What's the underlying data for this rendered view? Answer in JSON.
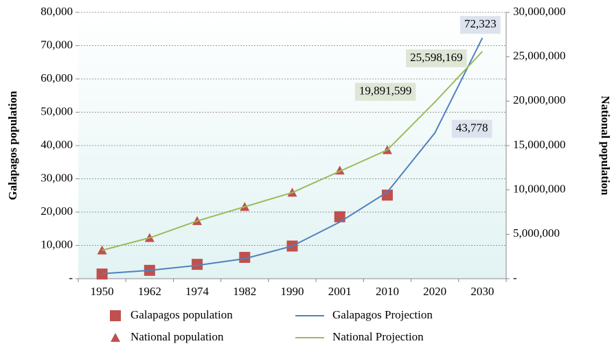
{
  "chart_data": {
    "type": "line",
    "categories": [
      "1950",
      "1962",
      "1974",
      "1982",
      "1990",
      "2001",
      "2010",
      "2020",
      "2030"
    ],
    "ylabel": "Galapagos population",
    "y2label": "National population",
    "ylim": [
      0,
      80000
    ],
    "yticks": [
      {
        "value": 0,
        "label": "-"
      },
      {
        "value": 10000,
        "label": "10,000"
      },
      {
        "value": 20000,
        "label": "20,000"
      },
      {
        "value": 30000,
        "label": "30,000"
      },
      {
        "value": 40000,
        "label": "40,000"
      },
      {
        "value": 50000,
        "label": "50,000"
      },
      {
        "value": 60000,
        "label": "60,000"
      },
      {
        "value": 70000,
        "label": "70,000"
      },
      {
        "value": 80000,
        "label": "80,000"
      }
    ],
    "y2lim": [
      0,
      30000000
    ],
    "y2ticks": [
      {
        "value": 0,
        "label": "-"
      },
      {
        "value": 5000000,
        "label": "5,000,000"
      },
      {
        "value": 10000000,
        "label": "10,000,000"
      },
      {
        "value": 15000000,
        "label": "15,000,000"
      },
      {
        "value": 20000000,
        "label": "20,000,000"
      },
      {
        "value": 25000000,
        "label": "25,000,000"
      },
      {
        "value": 30000000,
        "label": "30,000,000"
      }
    ],
    "grid": true,
    "series": [
      {
        "name": "Galapagos population",
        "color": "#c0504d",
        "marker": "square",
        "values": [
          1400,
          2500,
          4300,
          6400,
          9800,
          18600,
          25100,
          null,
          null
        ]
      },
      {
        "name": "Galapagos Projection",
        "color": "#4f81bd",
        "values": [
          1500,
          2500,
          4000,
          6000,
          9800,
          17000,
          26000,
          43778,
          72323
        ],
        "value_labels": [
          null,
          null,
          null,
          null,
          null,
          null,
          null,
          "43,778",
          "72,323"
        ]
      },
      {
        "name": "National population",
        "color": "#c0504d",
        "marker": "triangle",
        "axis": "y2",
        "values": [
          3200000,
          4600000,
          6500000,
          8100000,
          9700000,
          12200000,
          14500000,
          null,
          null
        ]
      },
      {
        "name": "National Projection",
        "color": "#9bbb59",
        "axis": "y2",
        "values": [
          3200000,
          4600000,
          6500000,
          8100000,
          9700000,
          12100000,
          14500000,
          19891599,
          25598169
        ],
        "value_labels": [
          null,
          null,
          null,
          null,
          null,
          null,
          null,
          "19,891,599",
          "25,598,169"
        ]
      }
    ]
  }
}
